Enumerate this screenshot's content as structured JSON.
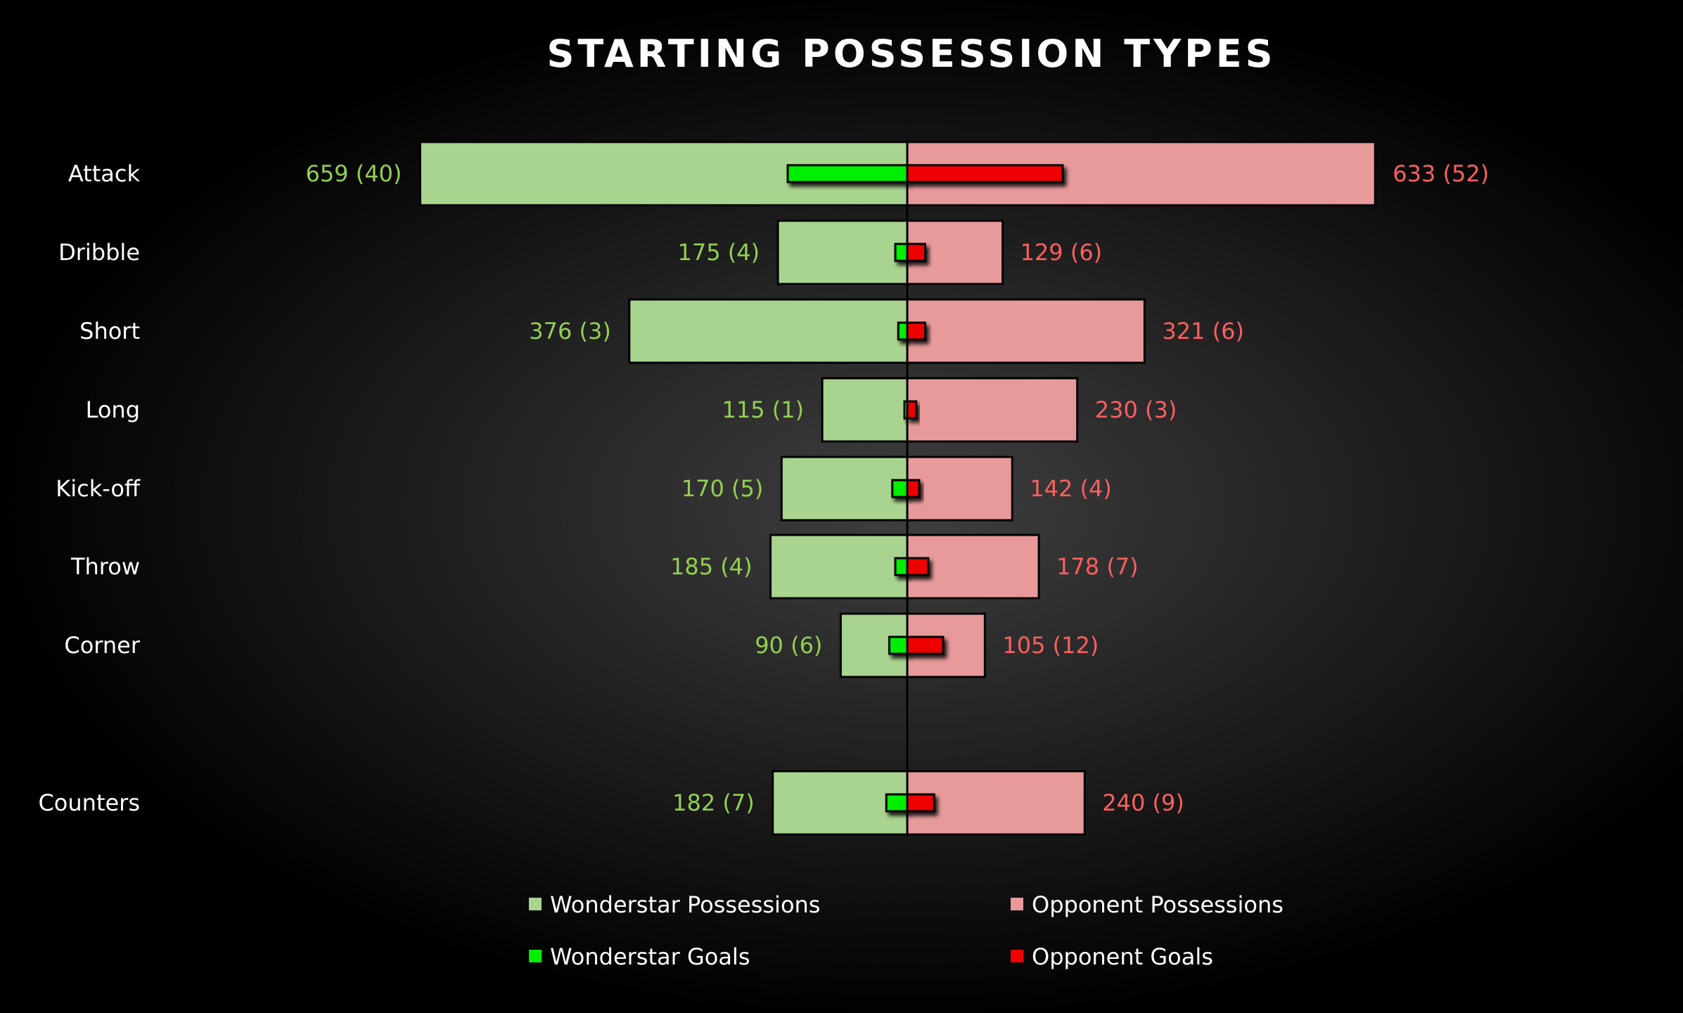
{
  "chart_data": {
    "type": "bar",
    "title": "STARTING POSSESSION TYPES",
    "xlabel": "",
    "ylabel": "",
    "categories": [
      "Attack",
      "Dribble",
      "Short",
      "Long",
      "Kick-off",
      "Throw",
      "Corner",
      "Counters"
    ],
    "series": [
      {
        "name": "Wonderstar Possessions",
        "values": [
          659,
          175,
          376,
          115,
          170,
          185,
          90,
          182
        ],
        "color": "#a9d48f"
      },
      {
        "name": "Opponent Possessions",
        "values": [
          633,
          129,
          321,
          230,
          142,
          178,
          105,
          240
        ],
        "color": "#e89a9b"
      },
      {
        "name": "Wonderstar Goals",
        "values": [
          40,
          4,
          3,
          1,
          5,
          4,
          6,
          7
        ],
        "color": "#00ee00"
      },
      {
        "name": "Opponent Goals",
        "values": [
          52,
          6,
          6,
          3,
          4,
          7,
          12,
          9
        ],
        "color": "#ee0000"
      }
    ],
    "data_labels": {
      "wonderstar": [
        "659 (40)",
        "175 (4)",
        "376 (3)",
        "115 (1)",
        "170 (5)",
        "185 (4)",
        "90 (6)",
        "182 (7)"
      ],
      "opponent": [
        "633 (52)",
        "129 (6)",
        "321 (6)",
        "230 (3)",
        "142 (4)",
        "178 (7)",
        "105 (12)",
        "240 (9)"
      ]
    },
    "legend": {
      "placement": "bottom"
    },
    "grid": false,
    "colors": {
      "wonderstar_label": "#92d050",
      "opponent_label": "#ff5f5f"
    }
  }
}
